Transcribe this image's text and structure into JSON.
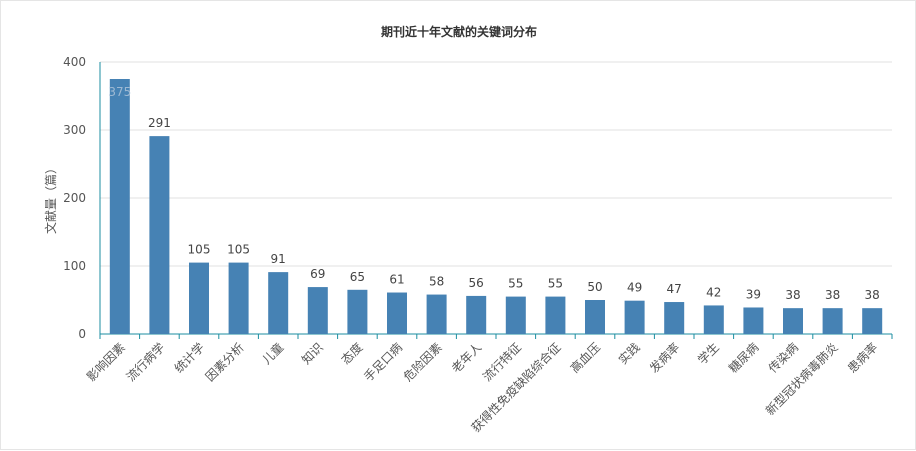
{
  "chart_data": {
    "type": "bar",
    "title": "期刊近十年文献的关键词分布",
    "xlabel": "",
    "ylabel": "文献量（篇）",
    "ylim": [
      0,
      400
    ],
    "yticks": [
      0,
      100,
      200,
      300,
      400
    ],
    "grid": true,
    "categories": [
      "影响因素",
      "流行病学",
      "统计学",
      "因素分析",
      "儿童",
      "知识",
      "态度",
      "手足口病",
      "危险因素",
      "老年人",
      "流行特征",
      "获得性免疫缺陷综合征",
      "高血压",
      "实践",
      "发病率",
      "学生",
      "糖尿病",
      "传染病",
      "新型冠状病毒肺炎",
      "患病率"
    ],
    "values": [
      375,
      291,
      105,
      105,
      91,
      69,
      65,
      61,
      58,
      56,
      55,
      55,
      50,
      49,
      47,
      42,
      39,
      38,
      38,
      38
    ],
    "bar_color": "#4682b4"
  }
}
